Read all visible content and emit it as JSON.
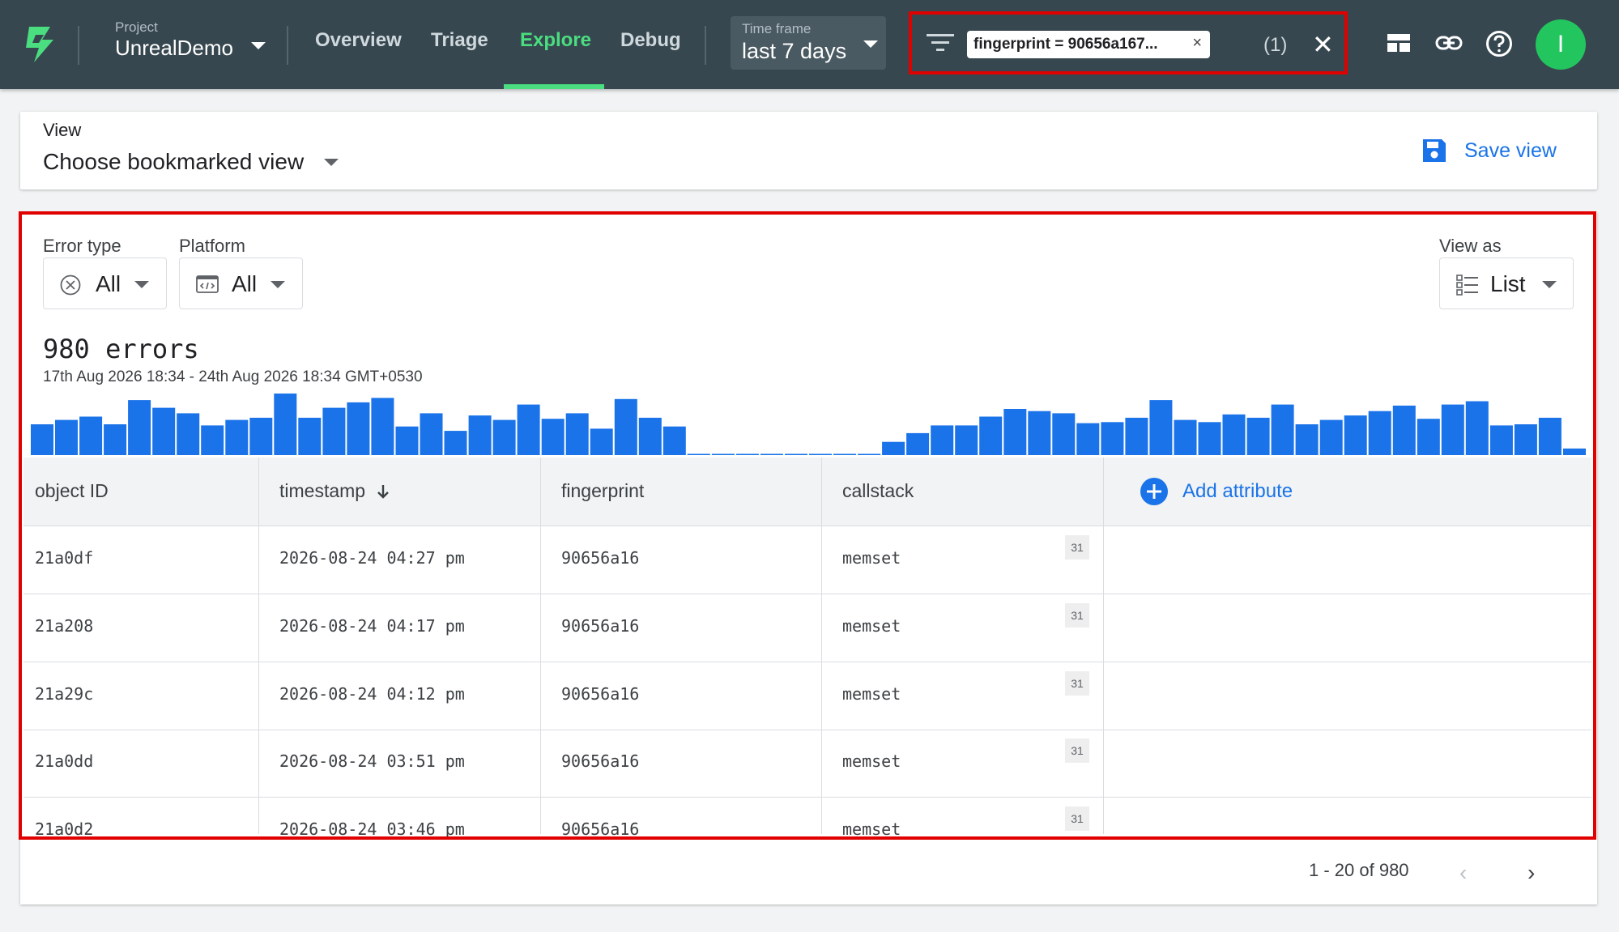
{
  "header": {
    "project_label": "Project",
    "project_name": "UnrealDemo",
    "tabs": [
      {
        "label": "Overview"
      },
      {
        "label": "Triage"
      },
      {
        "label": "Explore"
      },
      {
        "label": "Debug"
      }
    ],
    "active_tab": "Explore",
    "timeframe_label": "Time frame",
    "timeframe_value": "last 7 days",
    "filter_chip": "fingerprint = 90656a167...",
    "filter_count": "(1)",
    "avatar_initial": "I"
  },
  "view": {
    "label": "View",
    "value": "Choose bookmarked view",
    "save_label": "Save view"
  },
  "filters": {
    "error_type_label": "Error type",
    "error_type_value": "All",
    "platform_label": "Platform",
    "platform_value": "All",
    "view_as_label": "View as",
    "view_as_value": "List"
  },
  "summary": {
    "count": "980 errors",
    "date_range": "17th Aug 2026 18:34 - 24th Aug 2026 18:34 GMT+0530"
  },
  "chart_data": {
    "type": "bar",
    "color": "#1a73e8",
    "values": [
      28,
      32,
      35,
      28,
      50,
      43,
      38,
      27,
      32,
      34,
      56,
      34,
      43,
      48,
      52,
      26,
      38,
      22,
      36,
      32,
      46,
      33,
      38,
      24,
      51,
      34,
      26,
      1,
      1,
      1,
      1,
      1,
      1,
      1,
      1,
      12,
      20,
      27,
      27,
      35,
      42,
      40,
      38,
      29,
      30,
      34,
      50,
      32,
      30,
      37,
      34,
      46,
      28,
      32,
      36,
      40,
      45,
      33,
      46,
      49,
      27,
      28,
      34,
      6
    ]
  },
  "table": {
    "columns": [
      "object ID",
      "timestamp",
      "fingerprint",
      "callstack"
    ],
    "add_attribute": "Add attribute",
    "rows": [
      {
        "id": "21a0df",
        "timestamp": "2026-08-24 04:27 pm",
        "fingerprint": "90656a16",
        "callstack": "memset",
        "badge": "31"
      },
      {
        "id": "21a208",
        "timestamp": "2026-08-24 04:17 pm",
        "fingerprint": "90656a16",
        "callstack": "memset",
        "badge": "31"
      },
      {
        "id": "21a29c",
        "timestamp": "2026-08-24 04:12 pm",
        "fingerprint": "90656a16",
        "callstack": "memset",
        "badge": "31"
      },
      {
        "id": "21a0dd",
        "timestamp": "2026-08-24 03:51 pm",
        "fingerprint": "90656a16",
        "callstack": "memset",
        "badge": "31"
      },
      {
        "id": "21a0d2",
        "timestamp": "2026-08-24 03:46 pm",
        "fingerprint": "90656a16",
        "callstack": "memset",
        "badge": "31"
      }
    ]
  },
  "pagination": {
    "range": "1 - 20 of 980"
  }
}
